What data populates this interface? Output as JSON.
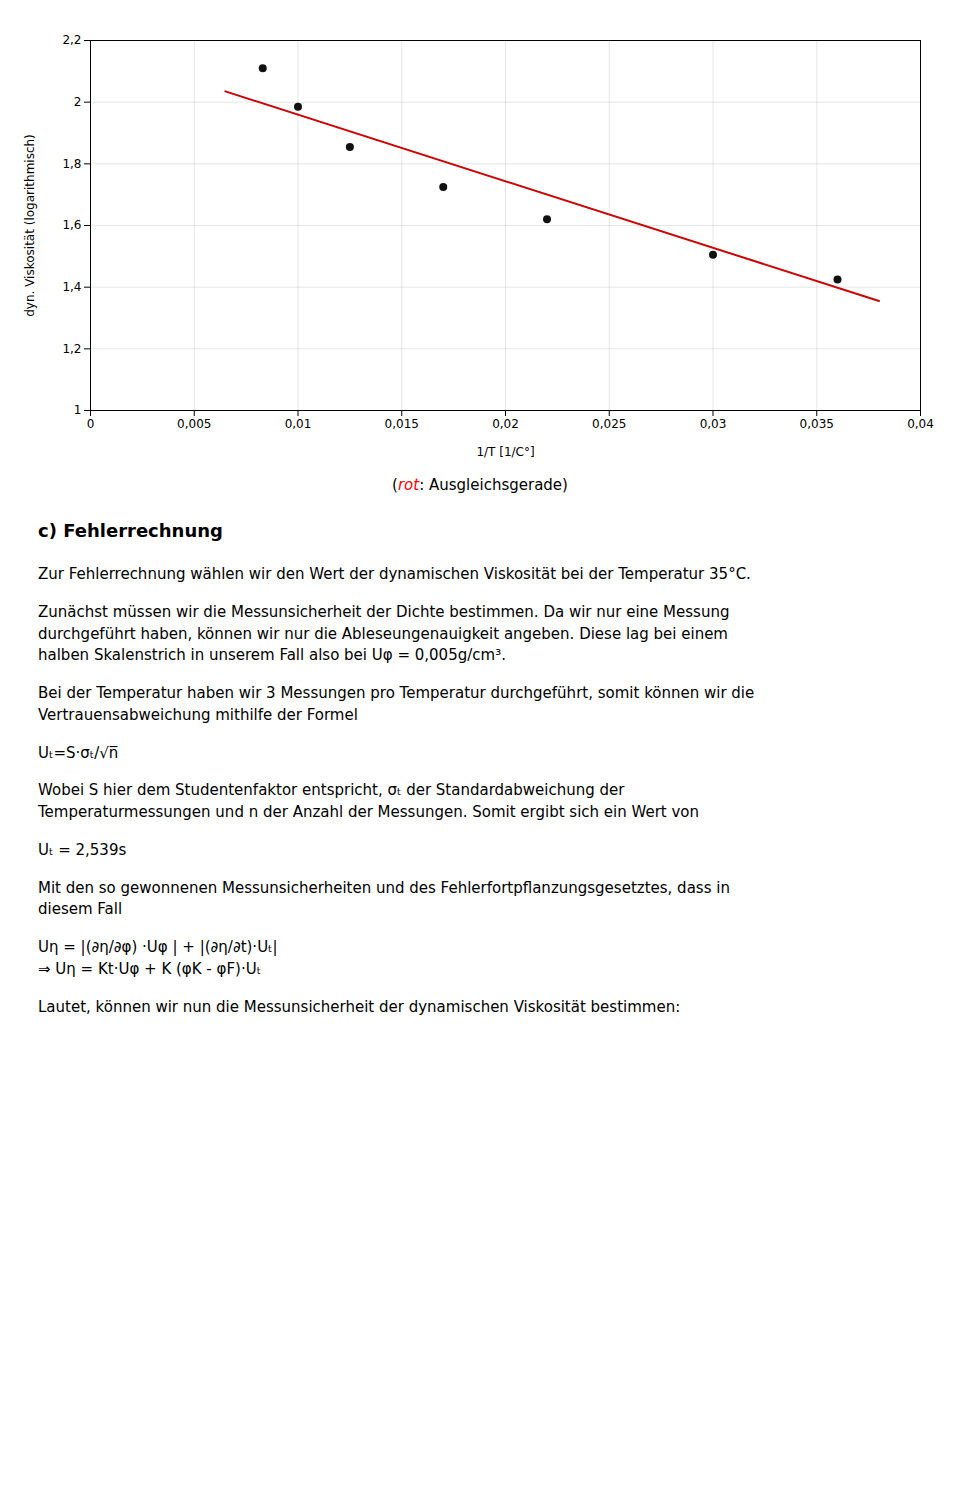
{
  "chart_data": {
    "type": "scatter",
    "series": [
      {
        "type": "scatter",
        "color": "#111111",
        "x": [
          0.0083,
          0.01,
          0.0125,
          0.017,
          0.022,
          0.03,
          0.036
        ],
        "values": [
          2.11,
          1.985,
          1.855,
          1.725,
          1.62,
          1.505,
          1.425
        ]
      },
      {
        "type": "line",
        "color": "#cc0000",
        "x": [
          0.0065,
          0.038
        ],
        "values": [
          2.035,
          1.355
        ]
      }
    ],
    "xlabel": "1/T [1/C°]",
    "ylabel": "dyn. Viskosität (logarithmisch)",
    "xlim": [
      0,
      0.04
    ],
    "ylim": [
      1.0,
      2.2
    ],
    "xticks": [
      0,
      {
        "value": 0.005,
        "label": "0,005"
      },
      {
        "value": 0.01,
        "label": "0,01"
      },
      {
        "value": 0.015,
        "label": "0,015"
      },
      {
        "value": 0.02,
        "label": "0,02"
      },
      {
        "value": 0.025,
        "label": "0,025"
      },
      {
        "value": 0.03,
        "label": "0,03"
      },
      {
        "value": 0.035,
        "label": "0,035"
      },
      {
        "value": 0.04,
        "label": "0,04"
      }
    ],
    "yticks": [
      1,
      {
        "value": 1.2,
        "label": "1,2"
      },
      {
        "value": 1.4,
        "label": "1,4"
      },
      {
        "value": 1.6,
        "label": "1,6"
      },
      {
        "value": 1.8,
        "label": "1,8"
      },
      2,
      {
        "value": 2.2,
        "label": "2,2"
      }
    ],
    "grid": true,
    "caption": [
      {
        "text": "(",
        "color": "#000000"
      },
      {
        "text": "rot",
        "color": "red"
      },
      {
        "text": ": Ausgleichsgerade)",
        "color": "#000000"
      }
    ],
    "annotations": [
      [
        "c)  Fehlerrechnung"
      ],
      [
        "Zur Fehlerrechnung wählen wir den Wert der dynamischen Viskosität bei der Temperatur 35°C."
      ],
      [
        "Zunächst müssen wir die Messunsicherheit der Dichte bestimmen. Da wir nur eine Messung",
        "durchgeführt haben, können wir nur die Ableseungenauigkeit angeben. Diese lag bei einem",
        "halben Skalenstrich in unserem Fall also bei Uφ = 0,005g/cm³."
      ],
      [
        "Bei der Temperatur haben wir 3 Messungen pro Temperatur durchgeführt, somit können wir die",
        "Vertrauensabweichung mithilfe der Formel"
      ],
      [
        "Uₜ=S·σₜ/√n̅"
      ],
      [
        "Wobei S hier dem Studentenfaktor entspricht, σₜ der Standardabweichung der",
        "Temperaturmessungen und n der Anzahl der Messungen. Somit ergibt sich ein Wert von"
      ],
      [
        "Uₜ = 2,539s"
      ],
      [
        "Mit den so gewonnenen Messunsicherheiten und des Fehlerfortpflanzungsgesetztes, dass in",
        "diesem Fall"
      ],
      [
        "Uη = |(∂η/∂φ) ·Uφ | + |(∂η/∂t)·Uₜ|",
        "⇒ Uη = Kt·Uφ + K (φK - φF)·Uₜ"
      ],
      [
        "Lautet, können wir nun die Messunsicherheit der dynamischen Viskosität bestimmen:"
      ]
    ]
  }
}
